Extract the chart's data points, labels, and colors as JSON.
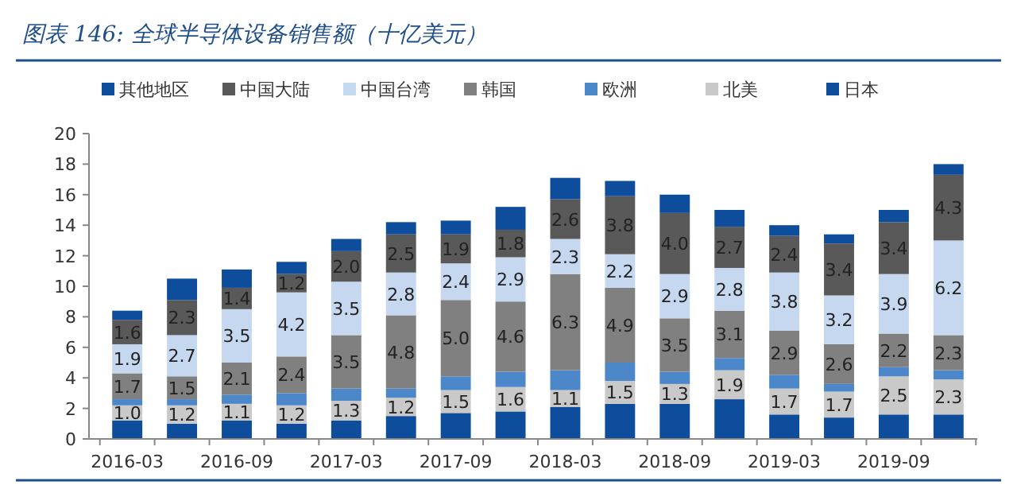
{
  "chart_data": {
    "type": "bar",
    "stacked": true,
    "title": "图表 146:  全球半导体设备销售额（十亿美元）",
    "categories": [
      "2016-03",
      null,
      "2016-09",
      null,
      "2017-03",
      null,
      "2017-09",
      null,
      "2018-03",
      null,
      "2018-09",
      null,
      "2019-03",
      null,
      "2019-09",
      null
    ],
    "series": [
      {
        "name": "日本",
        "color": "#0e4c9c",
        "values": [
          1.2,
          1.0,
          1.2,
          1.0,
          1.2,
          1.5,
          1.7,
          1.8,
          2.1,
          2.3,
          2.3,
          2.6,
          1.6,
          1.4,
          1.6,
          1.6
        ]
      },
      {
        "name": "北美",
        "color": "#c9c9c9",
        "values": [
          1.0,
          1.2,
          1.1,
          1.2,
          1.3,
          1.2,
          1.5,
          1.6,
          1.1,
          1.5,
          1.3,
          1.9,
          1.7,
          1.7,
          2.5,
          2.3
        ],
        "value_labels": [
          "1.0",
          "1.2",
          "1.1",
          "1.2",
          "1.3",
          "1.2",
          "1.5",
          "1.6",
          "1.1",
          "1.5",
          "1.3",
          "1.9",
          "1.7",
          "1.7",
          "2.5",
          "2.3"
        ]
      },
      {
        "name": "欧洲",
        "color": "#4b87c9",
        "values": [
          0.4,
          0.4,
          0.6,
          0.8,
          0.8,
          0.6,
          0.9,
          1.0,
          1.3,
          1.2,
          0.8,
          0.8,
          0.9,
          0.5,
          0.6,
          0.6
        ]
      },
      {
        "name": "韩国",
        "color": "#808080",
        "values": [
          1.7,
          1.5,
          2.1,
          2.4,
          3.5,
          4.8,
          5.0,
          4.6,
          6.3,
          4.9,
          3.5,
          3.1,
          2.9,
          2.6,
          2.2,
          2.3
        ],
        "value_labels": [
          "1.7",
          "1.5",
          "2.1",
          "2.4",
          "3.5",
          "4.8",
          "5.0",
          "4.6",
          "6.3",
          "4.9",
          "3.5",
          "3.1",
          "2.9",
          "2.6",
          "2.2",
          "2.3"
        ]
      },
      {
        "name": "中国台湾",
        "color": "#c6d8ef",
        "values": [
          1.9,
          2.7,
          3.5,
          4.2,
          3.5,
          2.8,
          2.4,
          2.9,
          2.3,
          2.2,
          2.9,
          2.8,
          3.8,
          3.2,
          3.9,
          6.2
        ],
        "value_labels": [
          "1.9",
          "2.7",
          "3.5",
          "4.2",
          "3.5",
          "2.8",
          "2.4",
          "2.9",
          "2.3",
          "2.2",
          "2.9",
          "2.8",
          "3.8",
          "3.2",
          "3.9",
          "6.2"
        ]
      },
      {
        "name": "中国大陆",
        "color": "#595959",
        "values": [
          1.6,
          2.3,
          1.4,
          1.2,
          2.0,
          2.5,
          1.9,
          1.8,
          2.6,
          3.8,
          4.0,
          2.7,
          2.4,
          3.4,
          3.4,
          4.3
        ],
        "value_labels": [
          "1.6",
          "2.3",
          "1.4",
          "1.2",
          "2.0",
          "2.5",
          "1.9",
          "1.8",
          "2.6",
          "3.8",
          "4.0",
          "2.7",
          "2.4",
          "3.4",
          "3.4",
          "4.3"
        ]
      },
      {
        "name": "其他地区",
        "color": "#0e4c9c",
        "values": [
          0.6,
          1.4,
          1.2,
          0.8,
          0.8,
          0.8,
          0.9,
          1.5,
          1.4,
          1.0,
          1.2,
          1.1,
          0.7,
          0.6,
          0.8,
          0.7
        ]
      }
    ],
    "ylim": [
      0,
      20
    ],
    "yticks": [
      0,
      2,
      4,
      6,
      8,
      10,
      12,
      14,
      16,
      18,
      20
    ],
    "legend": "top"
  }
}
